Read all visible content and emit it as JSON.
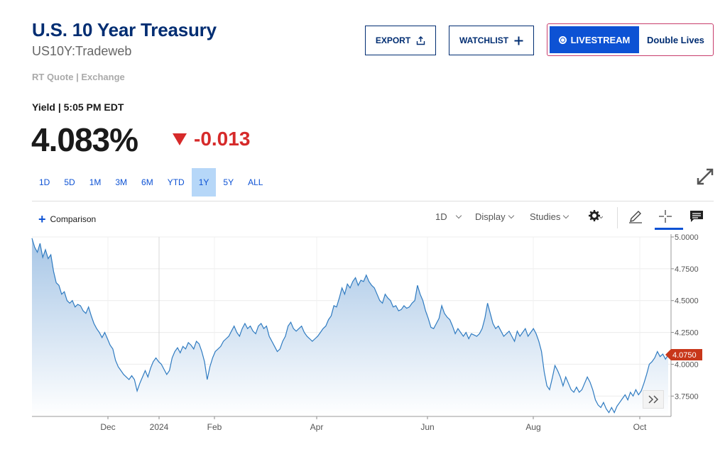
{
  "header": {
    "title": "U.S. 10 Year Treasury",
    "symbol": "US10Y:Tradeweb",
    "quote_type": "RT Quote | Exchange",
    "export_label": "EXPORT",
    "watchlist_label": "WATCHLIST",
    "livestream_label": "LIVESTREAM",
    "livestream_show": "Double Lives"
  },
  "quote": {
    "yield_label": "Yield | 5:05 PM EDT",
    "last": "4.083%",
    "change": "-0.013",
    "direction": "down"
  },
  "ranges": [
    "1D",
    "5D",
    "1M",
    "3M",
    "6M",
    "YTD",
    "1Y",
    "5Y",
    "ALL"
  ],
  "active_range": "1Y",
  "toolbar": {
    "comparison": "Comparison",
    "interval": "1D",
    "display": "Display",
    "studies": "Studies"
  },
  "colors": {
    "accent": "#0d52d4",
    "navy": "#002d72",
    "down": "#d62a2a",
    "line": "#2f7bc1",
    "price_tag": "#c8371a"
  },
  "chart_data": {
    "type": "area",
    "x_ticks": [
      "Dec",
      "2024",
      "Feb",
      "Apr",
      "Jun",
      "Aug",
      "Oct"
    ],
    "y_ticks": [
      "5.0000",
      "4.7500",
      "4.5000",
      "4.2500",
      "4.0000",
      "3.7500"
    ],
    "ylim": [
      3.59,
      5.0
    ],
    "last_value_label": "4.0750",
    "series": [
      {
        "values": [
          4.99,
          4.92,
          4.88,
          4.95,
          4.84,
          4.9,
          4.83,
          4.86,
          4.73,
          4.64,
          4.62,
          4.55,
          4.57,
          4.5,
          4.48,
          4.5,
          4.45,
          4.47,
          4.46,
          4.42,
          4.4,
          4.45,
          4.38,
          4.32,
          4.28,
          4.25,
          4.21,
          4.25,
          4.2,
          4.15,
          4.12,
          4.03,
          3.98,
          3.95,
          3.92,
          3.9,
          3.88,
          3.91,
          3.88,
          3.79,
          3.85,
          3.9,
          3.95,
          3.9,
          3.97,
          4.02,
          4.05,
          4.02,
          4.0,
          3.96,
          3.92,
          3.95,
          4.05,
          4.1,
          4.13,
          4.09,
          4.14,
          4.12,
          4.17,
          4.15,
          4.12,
          4.18,
          4.16,
          4.1,
          4.02,
          3.88,
          3.98,
          4.05,
          4.1,
          4.12,
          4.14,
          4.18,
          4.2,
          4.22,
          4.26,
          4.3,
          4.25,
          4.22,
          4.28,
          4.32,
          4.28,
          4.3,
          4.26,
          4.24,
          4.3,
          4.32,
          4.28,
          4.3,
          4.22,
          4.18,
          4.14,
          4.1,
          4.12,
          4.18,
          4.22,
          4.3,
          4.33,
          4.28,
          4.26,
          4.28,
          4.3,
          4.25,
          4.22,
          4.2,
          4.18,
          4.2,
          4.22,
          4.25,
          4.28,
          4.3,
          4.35,
          4.38,
          4.46,
          4.45,
          4.52,
          4.6,
          4.55,
          4.63,
          4.6,
          4.65,
          4.68,
          4.62,
          4.66,
          4.65,
          4.7,
          4.65,
          4.62,
          4.6,
          4.55,
          4.5,
          4.48,
          4.55,
          4.52,
          4.5,
          4.45,
          4.46,
          4.42,
          4.43,
          4.46,
          4.44,
          4.45,
          4.48,
          4.5,
          4.62,
          4.55,
          4.5,
          4.42,
          4.36,
          4.29,
          4.28,
          4.32,
          4.36,
          4.46,
          4.4,
          4.37,
          4.35,
          4.3,
          4.24,
          4.28,
          4.25,
          4.22,
          4.25,
          4.2,
          4.24,
          4.23,
          4.22,
          4.24,
          4.28,
          4.36,
          4.48,
          4.4,
          4.32,
          4.28,
          4.3,
          4.26,
          4.22,
          4.24,
          4.26,
          4.22,
          4.18,
          4.26,
          4.22,
          4.25,
          4.28,
          4.22,
          4.25,
          4.28,
          4.24,
          4.18,
          4.1,
          3.94,
          3.83,
          3.8,
          3.89,
          3.99,
          3.95,
          3.9,
          3.83,
          3.9,
          3.85,
          3.8,
          3.78,
          3.82,
          3.78,
          3.8,
          3.85,
          3.9,
          3.86,
          3.8,
          3.72,
          3.68,
          3.66,
          3.7,
          3.65,
          3.62,
          3.66,
          3.62,
          3.67,
          3.7,
          3.73,
          3.76,
          3.72,
          3.78,
          3.75,
          3.8,
          3.76,
          3.79,
          3.85,
          3.92,
          4.0,
          4.02,
          4.05,
          4.1,
          4.06,
          4.08,
          4.04,
          4.075
        ]
      }
    ]
  }
}
